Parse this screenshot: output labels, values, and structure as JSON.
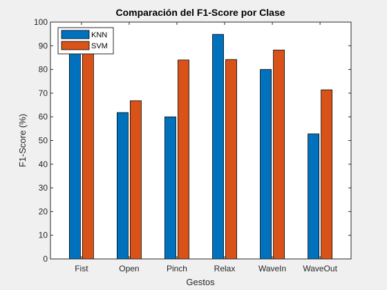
{
  "chart_data": {
    "type": "bar",
    "title": "Comparación del F1-Score por Clase",
    "xlabel": "Gestos",
    "ylabel": "F1-Score (%)",
    "categories": [
      "Fist",
      "Open",
      "Pinch",
      "Relax",
      "WaveIn",
      "WaveOut"
    ],
    "ylim": [
      0,
      100
    ],
    "yticks": [
      0,
      10,
      20,
      30,
      40,
      50,
      60,
      70,
      80,
      90,
      100
    ],
    "grid": false,
    "legend_position": "top-left",
    "series": [
      {
        "name": "KNN",
        "color": "#0072BD",
        "values": [
          89,
          61.8,
          60,
          94.8,
          80,
          52.8
        ]
      },
      {
        "name": "SVM",
        "color": "#D95319",
        "values": [
          89,
          66.8,
          84,
          84.2,
          88.2,
          71.4
        ]
      }
    ]
  }
}
